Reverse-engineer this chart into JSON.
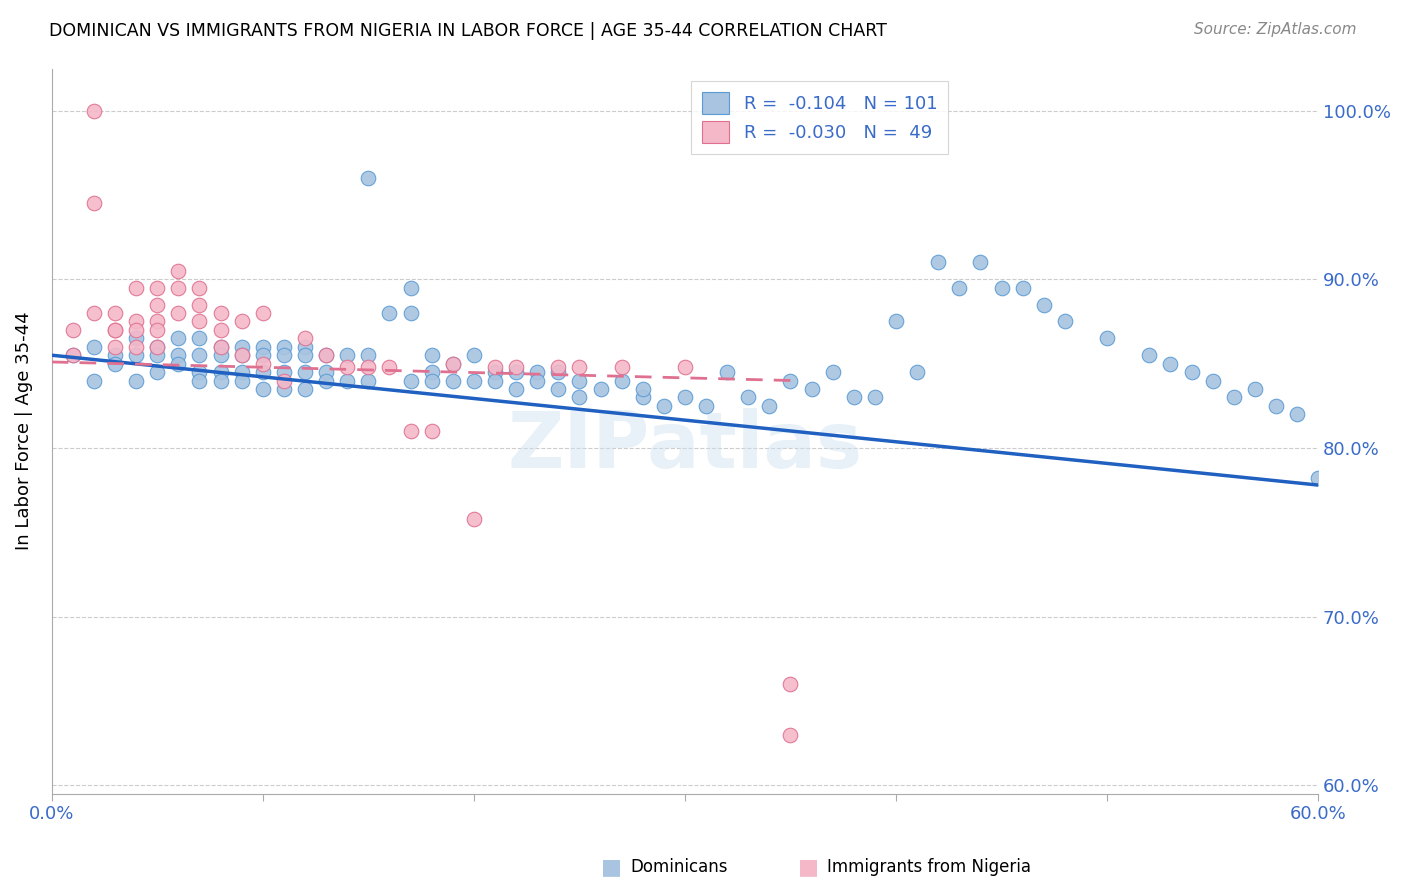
{
  "title": "DOMINICAN VS IMMIGRANTS FROM NIGERIA IN LABOR FORCE | AGE 35-44 CORRELATION CHART",
  "source": "Source: ZipAtlas.com",
  "ylabel": "In Labor Force | Age 35-44",
  "xlim": [
    0.0,
    0.6
  ],
  "ylim": [
    0.595,
    1.025
  ],
  "yticks": [
    0.6,
    0.7,
    0.8,
    0.9,
    1.0
  ],
  "ytick_labels": [
    "60.0%",
    "70.0%",
    "80.0%",
    "90.0%",
    "100.0%"
  ],
  "xticks": [
    0.0,
    0.1,
    0.2,
    0.3,
    0.4,
    0.5,
    0.6
  ],
  "xtick_labels": [
    "0.0%",
    "",
    "",
    "",
    "",
    "",
    "60.0%"
  ],
  "blue_fill": "#a8c4e0",
  "blue_edge": "#5b9bd5",
  "pink_fill": "#f4b8c8",
  "pink_edge": "#e07090",
  "blue_line_color": "#2060c0",
  "pink_line_color": "#e07090",
  "legend_R1": "-0.104",
  "legend_N1": "101",
  "legend_R2": "-0.030",
  "legend_N2": "49",
  "watermark": "ZIPatlas",
  "blue_trend_x": [
    0.0,
    0.6
  ],
  "blue_trend_y": [
    0.855,
    0.778
  ],
  "pink_trend_x": [
    0.0,
    0.35
  ],
  "pink_trend_y": [
    0.851,
    0.84
  ],
  "blue_scatter_x": [
    0.01,
    0.02,
    0.02,
    0.03,
    0.03,
    0.04,
    0.04,
    0.04,
    0.05,
    0.05,
    0.05,
    0.06,
    0.06,
    0.06,
    0.07,
    0.07,
    0.07,
    0.07,
    0.08,
    0.08,
    0.08,
    0.08,
    0.09,
    0.09,
    0.09,
    0.09,
    0.1,
    0.1,
    0.1,
    0.1,
    0.11,
    0.11,
    0.11,
    0.11,
    0.12,
    0.12,
    0.12,
    0.12,
    0.13,
    0.13,
    0.13,
    0.14,
    0.14,
    0.15,
    0.15,
    0.15,
    0.16,
    0.17,
    0.17,
    0.17,
    0.18,
    0.18,
    0.18,
    0.19,
    0.19,
    0.2,
    0.2,
    0.21,
    0.21,
    0.22,
    0.22,
    0.23,
    0.23,
    0.24,
    0.24,
    0.25,
    0.25,
    0.26,
    0.27,
    0.28,
    0.28,
    0.29,
    0.3,
    0.31,
    0.32,
    0.33,
    0.34,
    0.35,
    0.36,
    0.37,
    0.38,
    0.39,
    0.4,
    0.41,
    0.42,
    0.43,
    0.44,
    0.45,
    0.46,
    0.47,
    0.48,
    0.5,
    0.52,
    0.53,
    0.54,
    0.55,
    0.56,
    0.57,
    0.58,
    0.59,
    0.6
  ],
  "blue_scatter_y": [
    0.855,
    0.86,
    0.84,
    0.855,
    0.85,
    0.865,
    0.855,
    0.84,
    0.86,
    0.855,
    0.845,
    0.865,
    0.855,
    0.85,
    0.865,
    0.855,
    0.845,
    0.84,
    0.86,
    0.855,
    0.845,
    0.84,
    0.86,
    0.855,
    0.845,
    0.84,
    0.86,
    0.855,
    0.845,
    0.835,
    0.86,
    0.855,
    0.845,
    0.835,
    0.86,
    0.855,
    0.845,
    0.835,
    0.855,
    0.845,
    0.84,
    0.855,
    0.84,
    0.96,
    0.855,
    0.84,
    0.88,
    0.895,
    0.88,
    0.84,
    0.855,
    0.845,
    0.84,
    0.85,
    0.84,
    0.855,
    0.84,
    0.845,
    0.84,
    0.845,
    0.835,
    0.845,
    0.84,
    0.845,
    0.835,
    0.84,
    0.83,
    0.835,
    0.84,
    0.83,
    0.835,
    0.825,
    0.83,
    0.825,
    0.845,
    0.83,
    0.825,
    0.84,
    0.835,
    0.845,
    0.83,
    0.83,
    0.875,
    0.845,
    0.91,
    0.895,
    0.91,
    0.895,
    0.895,
    0.885,
    0.875,
    0.865,
    0.855,
    0.85,
    0.845,
    0.84,
    0.83,
    0.835,
    0.825,
    0.82,
    0.782
  ],
  "pink_scatter_x": [
    0.01,
    0.01,
    0.02,
    0.02,
    0.02,
    0.03,
    0.03,
    0.03,
    0.03,
    0.04,
    0.04,
    0.04,
    0.04,
    0.05,
    0.05,
    0.05,
    0.05,
    0.05,
    0.06,
    0.06,
    0.06,
    0.07,
    0.07,
    0.07,
    0.08,
    0.08,
    0.08,
    0.09,
    0.09,
    0.1,
    0.1,
    0.11,
    0.12,
    0.13,
    0.14,
    0.15,
    0.16,
    0.17,
    0.18,
    0.19,
    0.2,
    0.21,
    0.22,
    0.24,
    0.25,
    0.27,
    0.3,
    0.35,
    0.35
  ],
  "pink_scatter_y": [
    0.855,
    0.87,
    1.0,
    0.945,
    0.88,
    0.88,
    0.87,
    0.87,
    0.86,
    0.895,
    0.875,
    0.87,
    0.86,
    0.895,
    0.885,
    0.875,
    0.87,
    0.86,
    0.905,
    0.895,
    0.88,
    0.895,
    0.885,
    0.875,
    0.88,
    0.87,
    0.86,
    0.875,
    0.855,
    0.88,
    0.85,
    0.84,
    0.865,
    0.855,
    0.848,
    0.848,
    0.848,
    0.81,
    0.81,
    0.85,
    0.758,
    0.848,
    0.848,
    0.848,
    0.848,
    0.848,
    0.848,
    0.66,
    0.63
  ]
}
